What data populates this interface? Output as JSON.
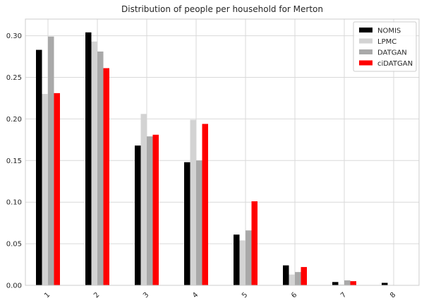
{
  "chart_data": {
    "type": "bar",
    "title": "Distribution of people per household for Merton",
    "xlabel": "",
    "ylabel": "",
    "categories": [
      "1",
      "2",
      "3",
      "4",
      "5",
      "6",
      "7",
      "8"
    ],
    "yticks": [
      "0.00",
      "0.05",
      "0.10",
      "0.15",
      "0.20",
      "0.25",
      "0.30"
    ],
    "ylim": [
      0,
      0.32
    ],
    "grid": true,
    "legend_position": "top-right",
    "series": [
      {
        "name": "NOMIS",
        "color": "#000000",
        "values": [
          0.283,
          0.304,
          0.168,
          0.148,
          0.061,
          0.024,
          0.004,
          0.003
        ]
      },
      {
        "name": "LPMC",
        "color": "#d3d3d3",
        "values": [
          0.23,
          0.293,
          0.206,
          0.199,
          0.054,
          0.013,
          0.001,
          0.0
        ]
      },
      {
        "name": "DATGAN",
        "color": "#a9a9a9",
        "values": [
          0.299,
          0.281,
          0.179,
          0.15,
          0.066,
          0.016,
          0.006,
          0.0
        ]
      },
      {
        "name": "ciDATGAN",
        "color": "#ff0000",
        "values": [
          0.231,
          0.261,
          0.181,
          0.194,
          0.101,
          0.022,
          0.005,
          0.0
        ]
      }
    ]
  }
}
